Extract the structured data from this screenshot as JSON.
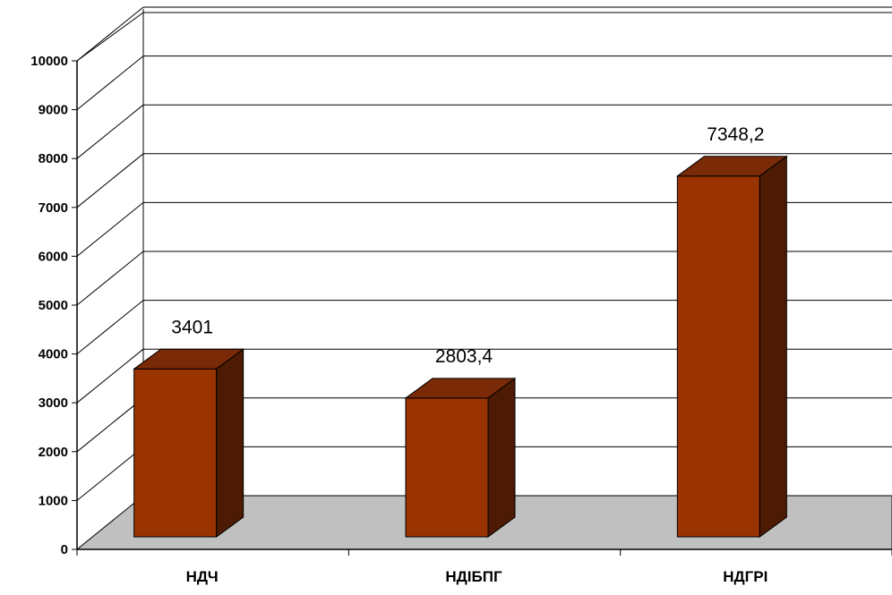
{
  "chart_data": {
    "type": "bar",
    "categories": [
      "НДЧ",
      "НДІБПГ",
      "НДГРІ"
    ],
    "values": [
      3401,
      2803.4,
      7348.2
    ],
    "data_labels": [
      "3401",
      "2803,4",
      "7348,2"
    ],
    "ylim": [
      0,
      10000
    ],
    "yticks": [
      0,
      1000,
      2000,
      3000,
      4000,
      5000,
      6000,
      7000,
      8000,
      9000,
      10000
    ],
    "grid": true,
    "legend": "none",
    "title": "",
    "xlabel": "",
    "ylabel": ""
  },
  "colors": {
    "bar_front": "#993300",
    "bar_top": "#7a2a06",
    "bar_side": "#4d1a04",
    "floor": "#c0c0c0",
    "grid": "#000000"
  }
}
